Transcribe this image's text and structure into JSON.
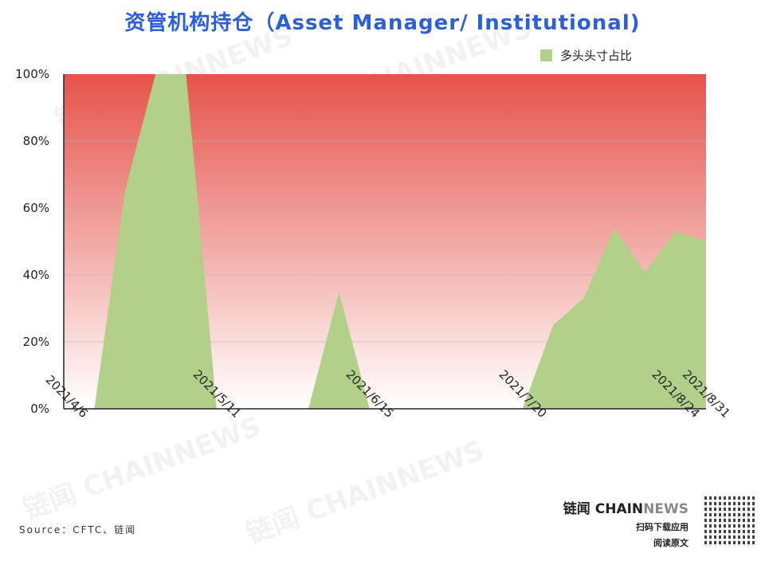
{
  "title": "资管机构持仓（Asset Manager/ Institutional)",
  "source": "Source：CFTC、链闻",
  "brand": {
    "name_cn": "链闻",
    "name_chain": "CHAIN",
    "name_news": "NEWS",
    "line1": "扫码下载应用",
    "line2": "阅读原文"
  },
  "watermark": "链闻 CHAINNEWS",
  "chart_data": {
    "type": "area",
    "title": "资管机构持仓（Asset Manager/ Institutional)",
    "x": [
      "2021/4/6",
      "2021/4/13",
      "2021/4/20",
      "2021/4/27",
      "2021/5/4",
      "2021/5/11",
      "2021/5/18",
      "2021/5/25",
      "2021/6/1",
      "2021/6/8",
      "2021/6/15",
      "2021/6/22",
      "2021/6/29",
      "2021/7/6",
      "2021/7/13",
      "2021/7/20",
      "2021/7/27",
      "2021/8/3",
      "2021/8/10",
      "2021/8/17",
      "2021/8/24",
      "2021/8/31"
    ],
    "xtick_labels": [
      "2021/4/6",
      "2021/5/11",
      "2021/6/15",
      "2021/7/20",
      "2021/8/24",
      "2021/8/31"
    ],
    "series": [
      {
        "name": "多头头寸占比",
        "values": [
          0,
          0,
          65,
          100,
          100,
          0,
          0,
          0,
          0,
          35,
          0,
          0,
          0,
          0,
          0,
          0,
          25,
          33,
          54,
          41,
          53,
          50
        ],
        "color": "#b3d08a"
      }
    ],
    "ylim": [
      0,
      100
    ],
    "yticks": [
      "0%",
      "20%",
      "40%",
      "60%",
      "80%",
      "100%"
    ],
    "background_gradient": [
      "#e5534b",
      "#ffffff"
    ],
    "grid": true,
    "legend": "top-right"
  }
}
